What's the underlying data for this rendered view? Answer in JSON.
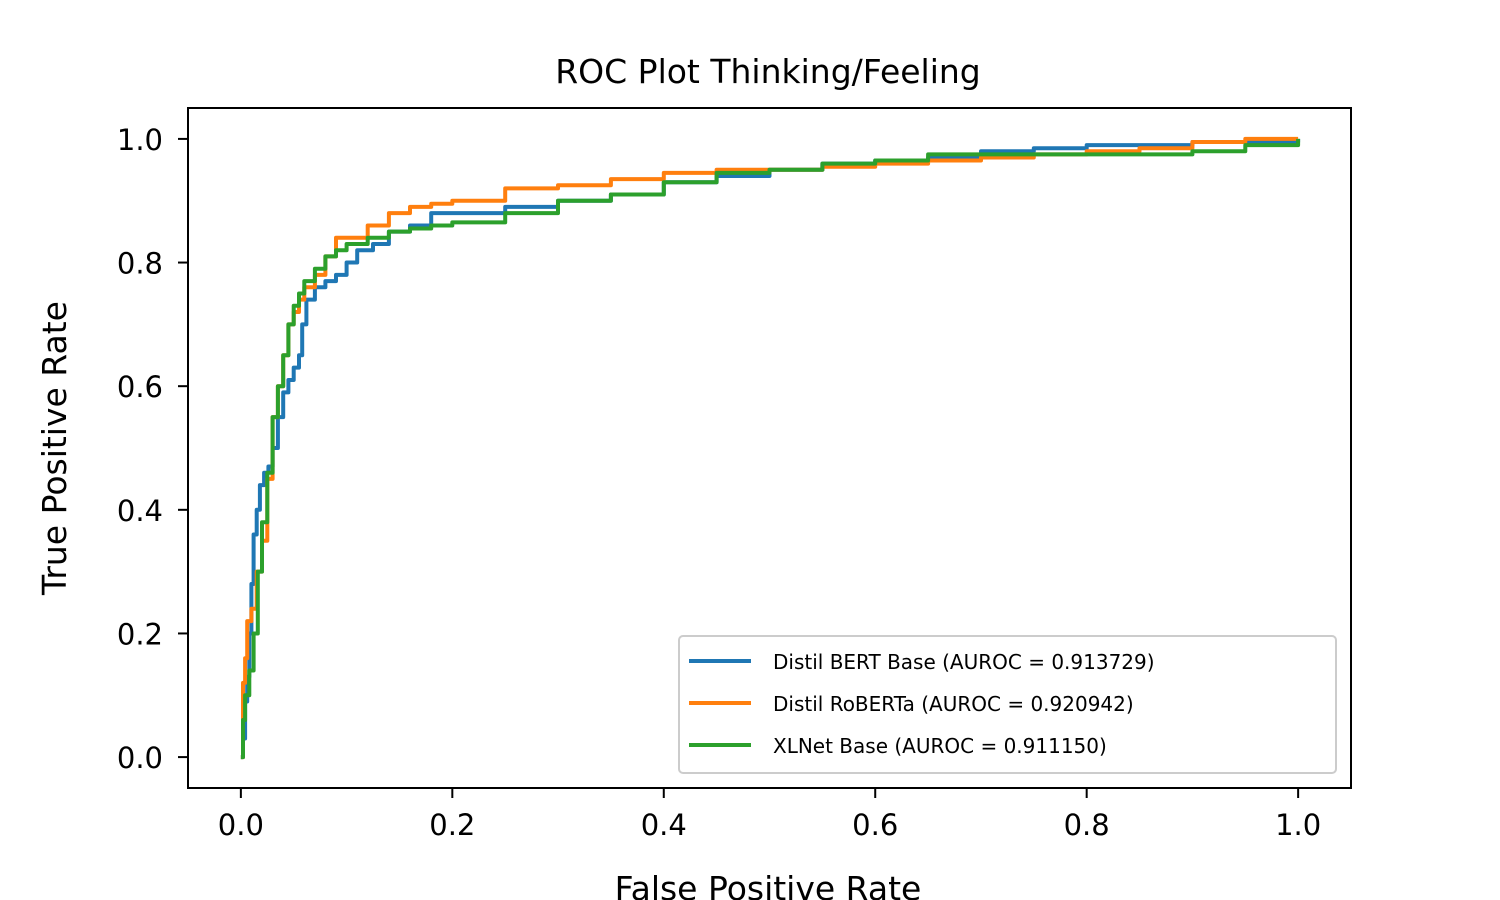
{
  "chart_data": {
    "type": "line",
    "title": "ROC Plot Thinking/Feeling",
    "xlabel": "False Positive Rate",
    "ylabel": "True Positive Rate",
    "xlim": [
      -0.05,
      1.05
    ],
    "ylim": [
      -0.05,
      1.05
    ],
    "xticks": [
      0.0,
      0.2,
      0.4,
      0.6,
      0.8,
      1.0
    ],
    "yticks": [
      0.0,
      0.2,
      0.4,
      0.6,
      0.8,
      1.0
    ],
    "xtick_labels": [
      "0.0",
      "0.2",
      "0.4",
      "0.6",
      "0.8",
      "1.0"
    ],
    "ytick_labels": [
      "0.0",
      "0.2",
      "0.4",
      "0.6",
      "0.8",
      "1.0"
    ],
    "grid": false,
    "legend_position": "lower-right",
    "series": [
      {
        "name": "Distil BERT Base (AUROC = 0.913729)",
        "color": "#1f77b4",
        "points": [
          [
            0.0,
            0.0
          ],
          [
            0.002,
            0.03
          ],
          [
            0.004,
            0.09
          ],
          [
            0.006,
            0.13
          ],
          [
            0.008,
            0.2
          ],
          [
            0.01,
            0.28
          ],
          [
            0.012,
            0.36
          ],
          [
            0.015,
            0.4
          ],
          [
            0.018,
            0.44
          ],
          [
            0.022,
            0.46
          ],
          [
            0.026,
            0.47
          ],
          [
            0.03,
            0.5
          ],
          [
            0.035,
            0.55
          ],
          [
            0.04,
            0.59
          ],
          [
            0.045,
            0.61
          ],
          [
            0.05,
            0.63
          ],
          [
            0.055,
            0.65
          ],
          [
            0.058,
            0.7
          ],
          [
            0.062,
            0.74
          ],
          [
            0.07,
            0.76
          ],
          [
            0.08,
            0.77
          ],
          [
            0.09,
            0.78
          ],
          [
            0.1,
            0.8
          ],
          [
            0.11,
            0.82
          ],
          [
            0.125,
            0.83
          ],
          [
            0.14,
            0.85
          ],
          [
            0.16,
            0.86
          ],
          [
            0.18,
            0.88
          ],
          [
            0.2,
            0.88
          ],
          [
            0.25,
            0.89
          ],
          [
            0.3,
            0.9
          ],
          [
            0.35,
            0.91
          ],
          [
            0.4,
            0.93
          ],
          [
            0.45,
            0.94
          ],
          [
            0.5,
            0.95
          ],
          [
            0.55,
            0.96
          ],
          [
            0.6,
            0.965
          ],
          [
            0.65,
            0.97
          ],
          [
            0.7,
            0.98
          ],
          [
            0.75,
            0.985
          ],
          [
            0.8,
            0.99
          ],
          [
            0.85,
            0.99
          ],
          [
            0.9,
            0.995
          ],
          [
            0.95,
            0.995
          ],
          [
            1.0,
            1.0
          ]
        ]
      },
      {
        "name": "Distil RoBERTa (AUROC = 0.920942)",
        "color": "#ff7f0e",
        "points": [
          [
            0.0,
            0.0
          ],
          [
            0.002,
            0.12
          ],
          [
            0.004,
            0.16
          ],
          [
            0.006,
            0.22
          ],
          [
            0.01,
            0.24
          ],
          [
            0.015,
            0.3
          ],
          [
            0.02,
            0.35
          ],
          [
            0.025,
            0.45
          ],
          [
            0.03,
            0.55
          ],
          [
            0.035,
            0.6
          ],
          [
            0.04,
            0.65
          ],
          [
            0.045,
            0.7
          ],
          [
            0.05,
            0.72
          ],
          [
            0.055,
            0.74
          ],
          [
            0.06,
            0.76
          ],
          [
            0.07,
            0.78
          ],
          [
            0.08,
            0.81
          ],
          [
            0.09,
            0.84
          ],
          [
            0.1,
            0.84
          ],
          [
            0.12,
            0.86
          ],
          [
            0.14,
            0.88
          ],
          [
            0.16,
            0.89
          ],
          [
            0.18,
            0.895
          ],
          [
            0.2,
            0.9
          ],
          [
            0.25,
            0.92
          ],
          [
            0.3,
            0.925
          ],
          [
            0.35,
            0.935
          ],
          [
            0.4,
            0.945
          ],
          [
            0.45,
            0.95
          ],
          [
            0.5,
            0.95
          ],
          [
            0.55,
            0.955
          ],
          [
            0.6,
            0.96
          ],
          [
            0.65,
            0.965
          ],
          [
            0.7,
            0.97
          ],
          [
            0.75,
            0.975
          ],
          [
            0.8,
            0.98
          ],
          [
            0.85,
            0.985
          ],
          [
            0.9,
            0.995
          ],
          [
            0.95,
            1.0
          ],
          [
            1.0,
            1.0
          ]
        ]
      },
      {
        "name": "XLNet Base (AUROC = 0.911150)",
        "color": "#2ca02c",
        "points": [
          [
            0.0,
            0.0
          ],
          [
            0.002,
            0.06
          ],
          [
            0.004,
            0.1
          ],
          [
            0.008,
            0.14
          ],
          [
            0.012,
            0.2
          ],
          [
            0.016,
            0.3
          ],
          [
            0.02,
            0.38
          ],
          [
            0.025,
            0.46
          ],
          [
            0.03,
            0.55
          ],
          [
            0.035,
            0.6
          ],
          [
            0.04,
            0.65
          ],
          [
            0.045,
            0.7
          ],
          [
            0.05,
            0.73
          ],
          [
            0.055,
            0.75
          ],
          [
            0.06,
            0.77
          ],
          [
            0.07,
            0.79
          ],
          [
            0.08,
            0.81
          ],
          [
            0.09,
            0.82
          ],
          [
            0.1,
            0.83
          ],
          [
            0.12,
            0.84
          ],
          [
            0.14,
            0.85
          ],
          [
            0.16,
            0.855
          ],
          [
            0.18,
            0.86
          ],
          [
            0.2,
            0.865
          ],
          [
            0.25,
            0.88
          ],
          [
            0.3,
            0.9
          ],
          [
            0.35,
            0.91
          ],
          [
            0.4,
            0.93
          ],
          [
            0.45,
            0.945
          ],
          [
            0.5,
            0.95
          ],
          [
            0.55,
            0.96
          ],
          [
            0.6,
            0.965
          ],
          [
            0.65,
            0.975
          ],
          [
            0.7,
            0.975
          ],
          [
            0.75,
            0.975
          ],
          [
            0.8,
            0.975
          ],
          [
            0.85,
            0.975
          ],
          [
            0.9,
            0.98
          ],
          [
            0.95,
            0.99
          ],
          [
            1.0,
            1.0
          ]
        ]
      }
    ]
  }
}
